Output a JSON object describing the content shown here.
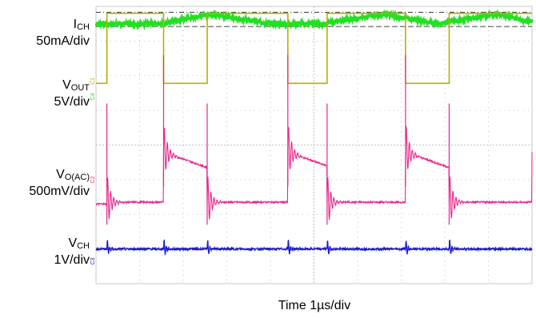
{
  "chart_data": {
    "type": "line",
    "title": "",
    "xlabel": "Time  1µs/div",
    "time_per_div_us": 1,
    "x_divisions": 10,
    "y_divisions": 8,
    "x_range_us": [
      0,
      10
    ],
    "grid": "dotted, 10x8 divisions",
    "colors": {
      "ich": "#22e022",
      "vout": "#b5b000",
      "vo_ac": "#e8288a",
      "vch": "#1a1acc"
    },
    "channel_markers": {
      "vout": "C1",
      "vout_alt": "C4",
      "vo_ac": "C2",
      "vch": "C3"
    },
    "series": [
      {
        "key": "ich",
        "name_main": "I",
        "name_sub": "CH",
        "scale": "50mA/div",
        "description_points": "inductor current ripple, triangular",
        "x_us": [
          0,
          1.5,
          2.6,
          4.0,
          5.2,
          6.6,
          7.8,
          9.2,
          10
        ],
        "y_div": [
          3.5,
          3.5,
          3.78,
          3.5,
          3.5,
          3.78,
          3.5,
          3.78,
          3.55
        ]
      },
      {
        "key": "vout",
        "name_main": "V",
        "name_sub": "OUT",
        "scale": "5V/div",
        "x_us": [
          0,
          0.25,
          1.55,
          2.55,
          4.4,
          5.3,
          7.1,
          8.1,
          10
        ],
        "levels_div": [
          1.78,
          3.8,
          1.78,
          3.8,
          1.78,
          3.8,
          1.78,
          3.8,
          1.78
        ]
      },
      {
        "key": "vo_ac",
        "name_main": "V",
        "name_sub": "O(AC)",
        "scale": "500mV/div",
        "x_us": [
          0.25,
          1.55,
          2.55,
          4.4,
          5.3,
          7.1,
          8.1,
          10
        ],
        "low_div": -1.7,
        "high_div": -0.2
      },
      {
        "key": "vch",
        "name_main": "V",
        "name_sub": "CH",
        "scale": "1V/div",
        "x_us": [
          0.25,
          1.55,
          2.55,
          4.4,
          5.3,
          7.1,
          8.1,
          10
        ],
        "baseline_div": -3.0
      }
    ]
  }
}
